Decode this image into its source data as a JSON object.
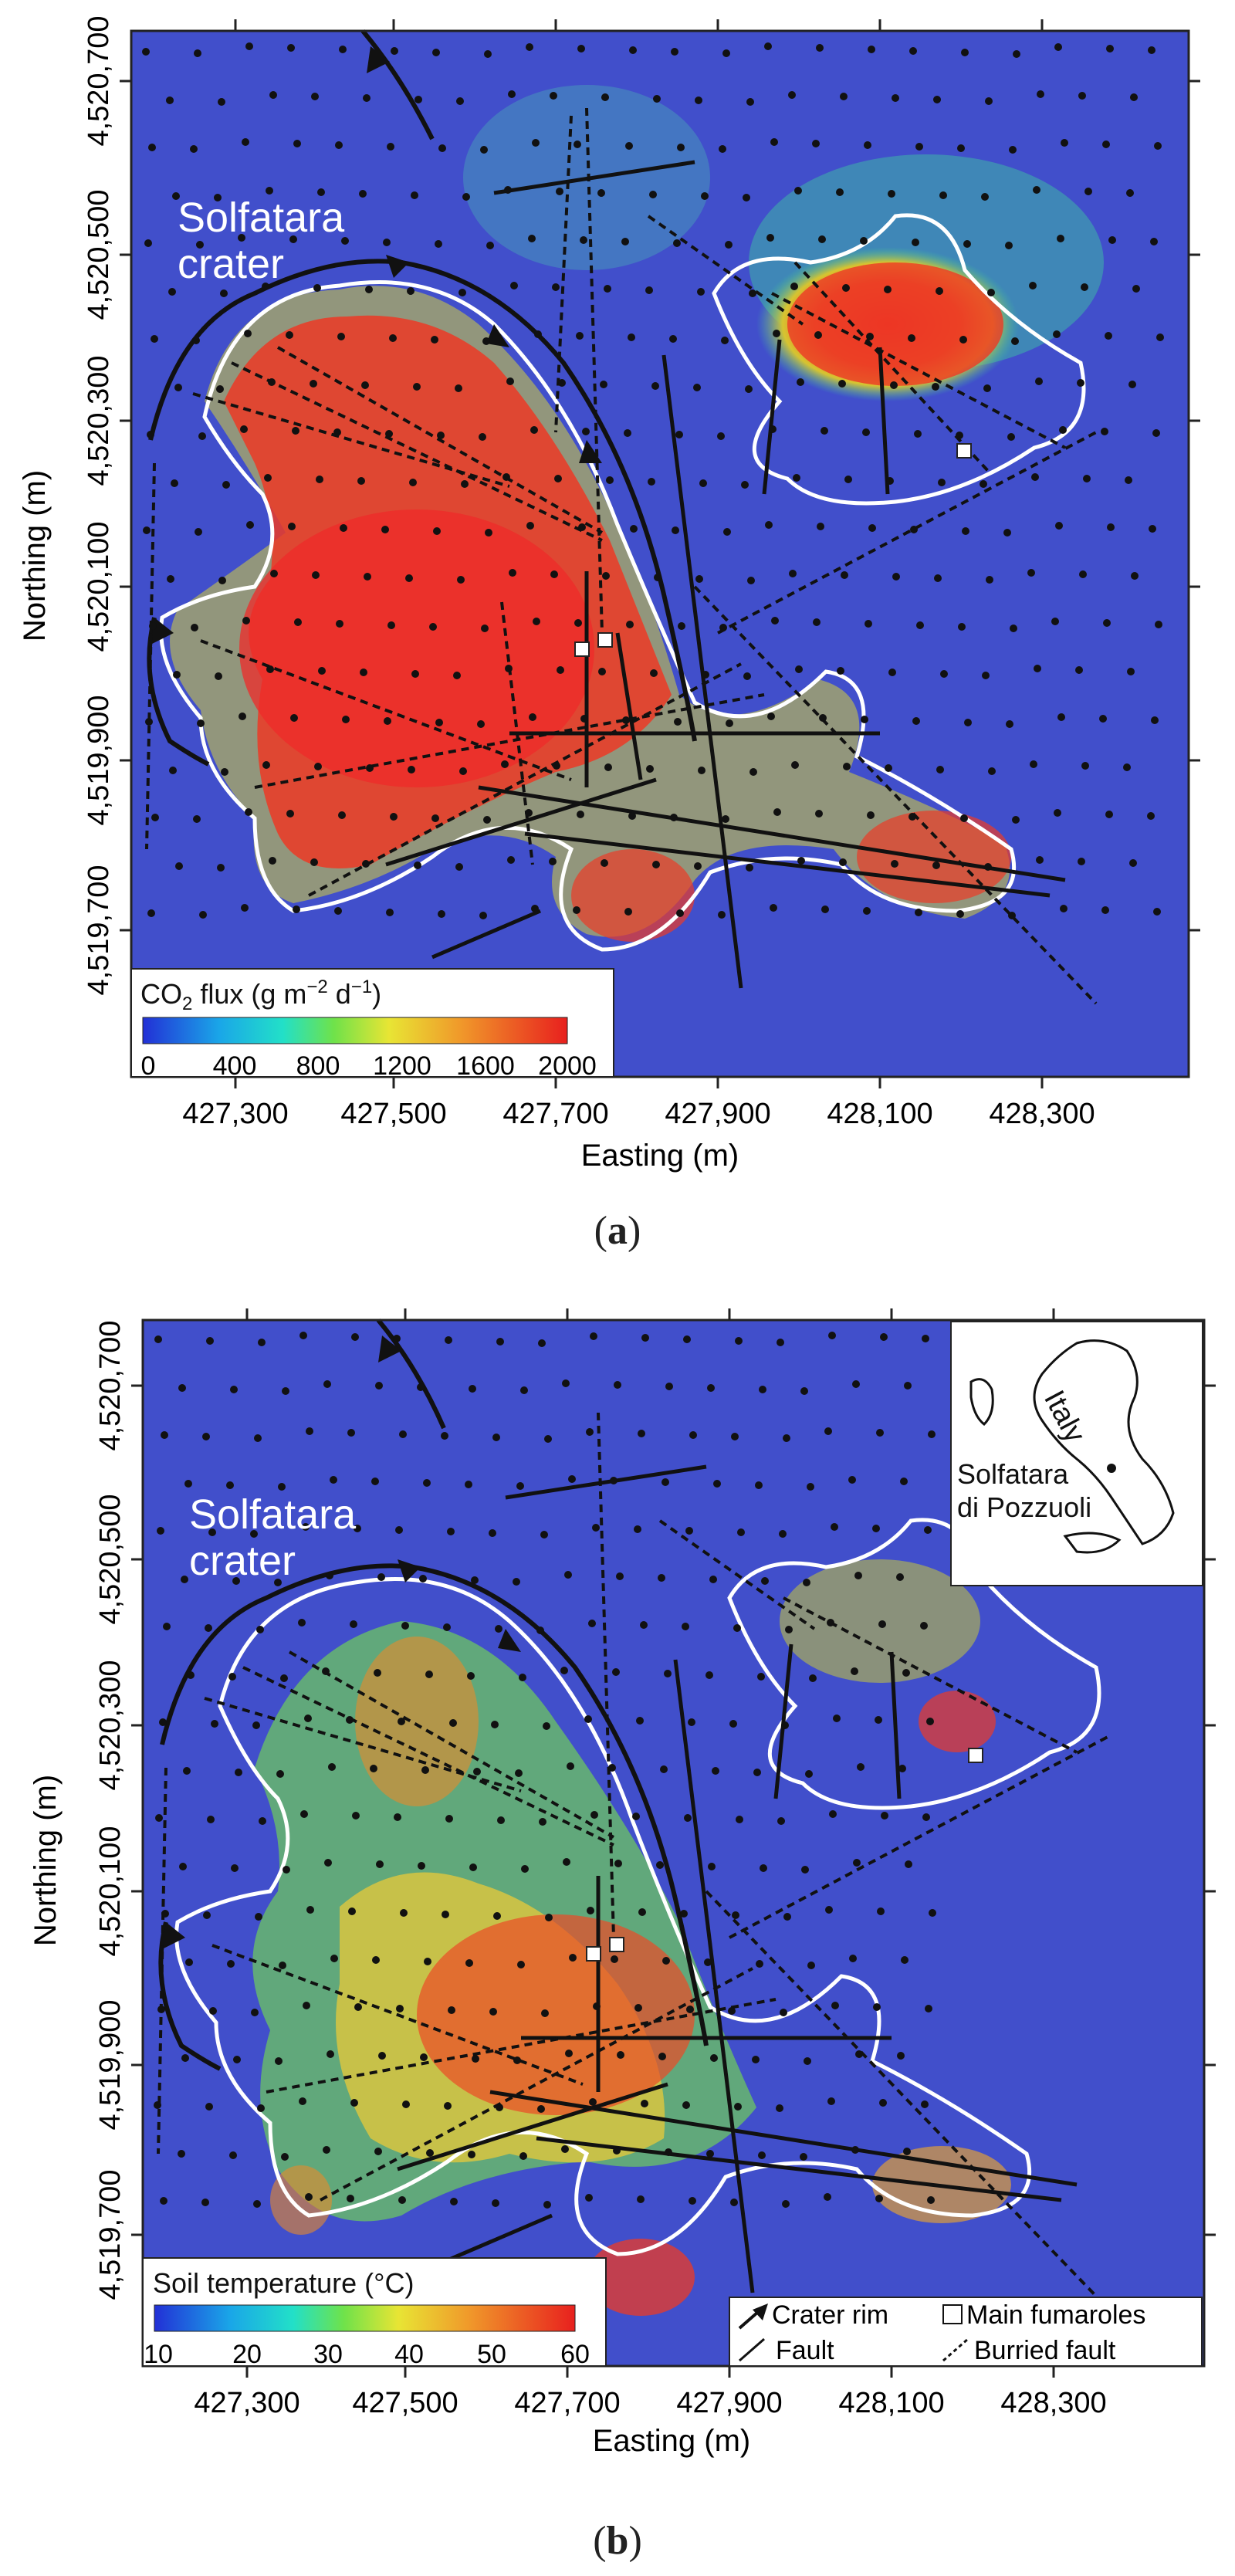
{
  "panels": [
    {
      "crater_label": [
        "Solfatara",
        "crater"
      ],
      "ylabel": "Northing (m)",
      "xlabel": "Easting (m)",
      "x_ticks": [
        "427,300",
        "427,500",
        "427,700",
        "427,900",
        "428,100",
        "428,300"
      ],
      "y_ticks": [
        "4,520,700",
        "4,520,500",
        "4,520,300",
        "4,520,100",
        "4,519,900",
        "4,519,700"
      ],
      "colorbar": {
        "title_main": "CO",
        "title_sub": "2",
        "title_rest": " flux (g m",
        "title_exp1": "−2",
        "title_mid": " d",
        "title_exp2": "−1",
        "title_end": ")",
        "ticks": [
          "0",
          "400",
          "800",
          "1200",
          "1600",
          "2000"
        ],
        "range": [
          0,
          2000
        ]
      },
      "caption_label": "a",
      "colors": {
        "low": "#2d3bd4",
        "high": "#e8242a"
      }
    },
    {
      "crater_label": [
        "Solfatara",
        "crater"
      ],
      "ylabel": "Northing (m)",
      "xlabel": "Easting (m)",
      "x_ticks": [
        "427,300",
        "427,500",
        "427,700",
        "427,900",
        "428,100",
        "428,300"
      ],
      "y_ticks": [
        "4,520,700",
        "4,520,500",
        "4,520,300",
        "4,520,100",
        "4,519,900",
        "4,519,700"
      ],
      "colorbar": {
        "title": "Soil temperature (°C)",
        "ticks": [
          "10",
          "20",
          "30",
          "40",
          "50",
          "60"
        ],
        "range": [
          10,
          60
        ]
      },
      "inset": {
        "country": "Italy",
        "site": [
          "Solfatara",
          "di Pozzuoli"
        ]
      },
      "legend": {
        "crater_rim": "Crater rim",
        "main_fumaroles": "Main fumaroles",
        "fault": "Fault",
        "buried_fault": "Burried fault"
      },
      "caption_label": "b",
      "colors": {
        "low": "#2d3bd4",
        "high": "#e8242a"
      }
    }
  ]
}
